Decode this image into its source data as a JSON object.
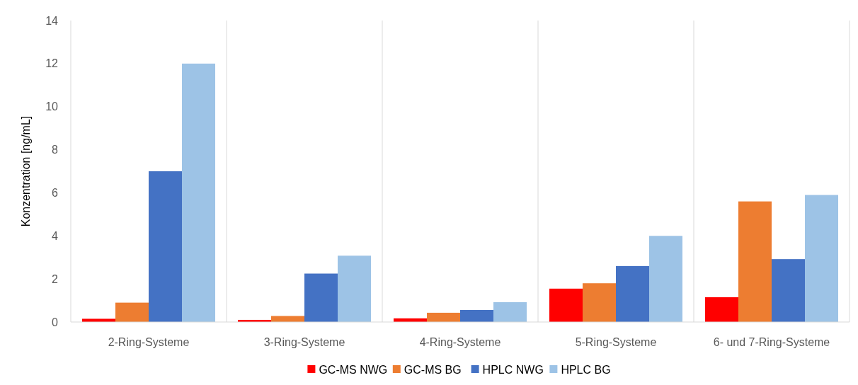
{
  "chart_data": {
    "type": "bar",
    "ylabel": "Konzentration [ng/mL]",
    "categories": [
      "2-Ring-Systeme",
      "3-Ring-Systeme",
      "4-Ring-Systeme",
      "5-Ring-Systeme",
      "6- und 7-Ring-Systeme"
    ],
    "series": [
      {
        "name": "GC-MS NWG",
        "color": "#ff0000",
        "values": [
          0.15,
          0.1,
          0.17,
          1.55,
          1.15
        ]
      },
      {
        "name": "GC-MS BG",
        "color": "#ed7d31",
        "values": [
          0.9,
          0.28,
          0.43,
          1.8,
          5.6
        ]
      },
      {
        "name": "HPLC NWG",
        "color": "#4472c4",
        "values": [
          7.0,
          2.25,
          0.56,
          2.6,
          2.92
        ]
      },
      {
        "name": "HPLC BG",
        "color": "#9dc3e6",
        "values": [
          12.0,
          3.08,
          0.92,
          4.0,
          5.9
        ]
      }
    ],
    "ylim": [
      0,
      14
    ],
    "yticks": [
      0,
      2,
      4,
      6,
      8,
      10,
      12,
      14
    ],
    "grid": "x",
    "legend": "bottom"
  }
}
